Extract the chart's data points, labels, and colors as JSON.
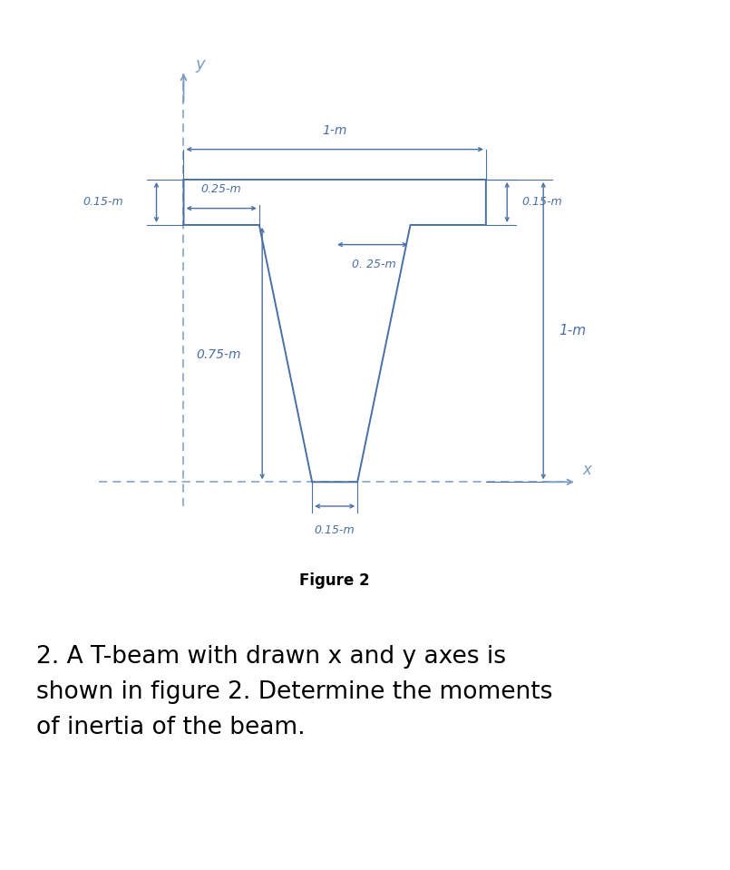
{
  "color": "#4a6fa5",
  "dashed_color": "#7a9cc5",
  "bg_color": "#ffffff",
  "figure_title": "Figure 2",
  "problem_text": "2. A T-beam with drawn x and y axes is\nshown in figure 2. Determine the moments\nof inertia of the beam.",
  "label_1m_top": "1-m",
  "label_015m_left": "0.15-m",
  "label_025m_left": "0.25-m",
  "label_025m_mid": "0. 25-m",
  "label_015m_right": "0.15-m",
  "label_1m_right": "1-m",
  "label_075m": "0.75-m",
  "label_015m_bot": "0.15-m",
  "fig_width": 8.05,
  "fig_height": 9.59
}
